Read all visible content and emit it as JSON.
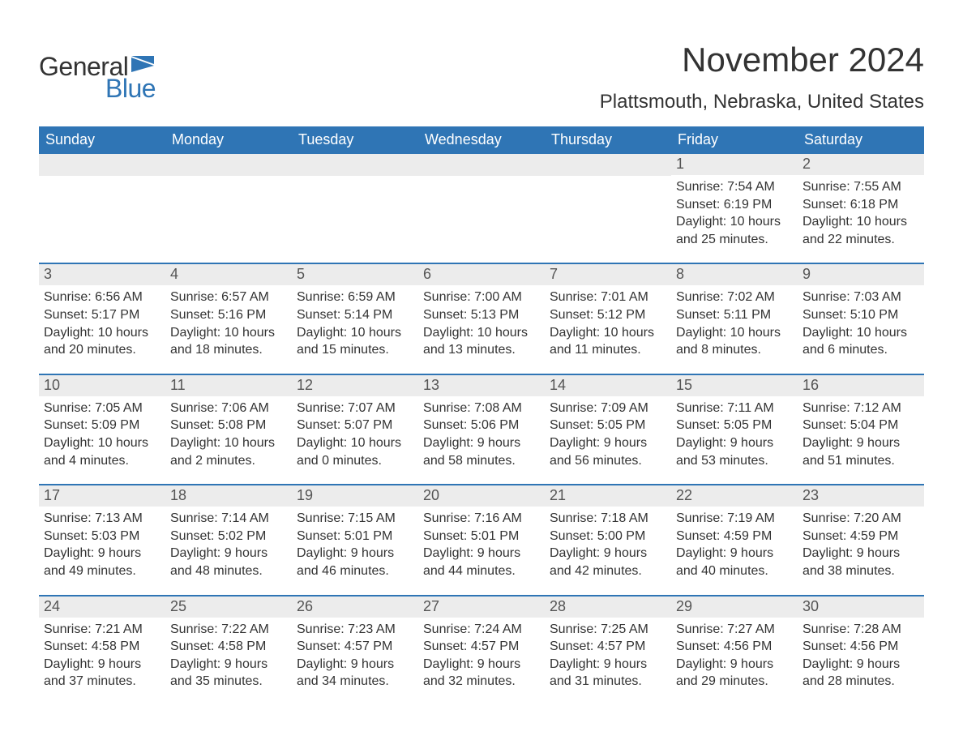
{
  "logo": {
    "text1": "General",
    "text2": "Blue",
    "flag_color": "#2f75b5"
  },
  "title": "November 2024",
  "location": "Plattsmouth, Nebraska, United States",
  "colors": {
    "header_bg": "#2f75b5",
    "header_text": "#ffffff",
    "daynum_bg": "#ececec",
    "body_text": "#333333",
    "page_bg": "#ffffff"
  },
  "typography": {
    "title_fontsize": 42,
    "location_fontsize": 24,
    "header_fontsize": 18,
    "daynum_fontsize": 18,
    "body_fontsize": 16,
    "logo_fontsize": 32
  },
  "day_headers": [
    "Sunday",
    "Monday",
    "Tuesday",
    "Wednesday",
    "Thursday",
    "Friday",
    "Saturday"
  ],
  "weeks": [
    [
      {
        "empty": true
      },
      {
        "empty": true
      },
      {
        "empty": true
      },
      {
        "empty": true
      },
      {
        "empty": true
      },
      {
        "n": "1",
        "sunrise": "7:54 AM",
        "sunset": "6:19 PM",
        "daylight": "10 hours and 25 minutes."
      },
      {
        "n": "2",
        "sunrise": "7:55 AM",
        "sunset": "6:18 PM",
        "daylight": "10 hours and 22 minutes."
      }
    ],
    [
      {
        "n": "3",
        "sunrise": "6:56 AM",
        "sunset": "5:17 PM",
        "daylight": "10 hours and 20 minutes."
      },
      {
        "n": "4",
        "sunrise": "6:57 AM",
        "sunset": "5:16 PM",
        "daylight": "10 hours and 18 minutes."
      },
      {
        "n": "5",
        "sunrise": "6:59 AM",
        "sunset": "5:14 PM",
        "daylight": "10 hours and 15 minutes."
      },
      {
        "n": "6",
        "sunrise": "7:00 AM",
        "sunset": "5:13 PM",
        "daylight": "10 hours and 13 minutes."
      },
      {
        "n": "7",
        "sunrise": "7:01 AM",
        "sunset": "5:12 PM",
        "daylight": "10 hours and 11 minutes."
      },
      {
        "n": "8",
        "sunrise": "7:02 AM",
        "sunset": "5:11 PM",
        "daylight": "10 hours and 8 minutes."
      },
      {
        "n": "9",
        "sunrise": "7:03 AM",
        "sunset": "5:10 PM",
        "daylight": "10 hours and 6 minutes."
      }
    ],
    [
      {
        "n": "10",
        "sunrise": "7:05 AM",
        "sunset": "5:09 PM",
        "daylight": "10 hours and 4 minutes."
      },
      {
        "n": "11",
        "sunrise": "7:06 AM",
        "sunset": "5:08 PM",
        "daylight": "10 hours and 2 minutes."
      },
      {
        "n": "12",
        "sunrise": "7:07 AM",
        "sunset": "5:07 PM",
        "daylight": "10 hours and 0 minutes."
      },
      {
        "n": "13",
        "sunrise": "7:08 AM",
        "sunset": "5:06 PM",
        "daylight": "9 hours and 58 minutes."
      },
      {
        "n": "14",
        "sunrise": "7:09 AM",
        "sunset": "5:05 PM",
        "daylight": "9 hours and 56 minutes."
      },
      {
        "n": "15",
        "sunrise": "7:11 AM",
        "sunset": "5:05 PM",
        "daylight": "9 hours and 53 minutes."
      },
      {
        "n": "16",
        "sunrise": "7:12 AM",
        "sunset": "5:04 PM",
        "daylight": "9 hours and 51 minutes."
      }
    ],
    [
      {
        "n": "17",
        "sunrise": "7:13 AM",
        "sunset": "5:03 PM",
        "daylight": "9 hours and 49 minutes."
      },
      {
        "n": "18",
        "sunrise": "7:14 AM",
        "sunset": "5:02 PM",
        "daylight": "9 hours and 48 minutes."
      },
      {
        "n": "19",
        "sunrise": "7:15 AM",
        "sunset": "5:01 PM",
        "daylight": "9 hours and 46 minutes."
      },
      {
        "n": "20",
        "sunrise": "7:16 AM",
        "sunset": "5:01 PM",
        "daylight": "9 hours and 44 minutes."
      },
      {
        "n": "21",
        "sunrise": "7:18 AM",
        "sunset": "5:00 PM",
        "daylight": "9 hours and 42 minutes."
      },
      {
        "n": "22",
        "sunrise": "7:19 AM",
        "sunset": "4:59 PM",
        "daylight": "9 hours and 40 minutes."
      },
      {
        "n": "23",
        "sunrise": "7:20 AM",
        "sunset": "4:59 PM",
        "daylight": "9 hours and 38 minutes."
      }
    ],
    [
      {
        "n": "24",
        "sunrise": "7:21 AM",
        "sunset": "4:58 PM",
        "daylight": "9 hours and 37 minutes."
      },
      {
        "n": "25",
        "sunrise": "7:22 AM",
        "sunset": "4:58 PM",
        "daylight": "9 hours and 35 minutes."
      },
      {
        "n": "26",
        "sunrise": "7:23 AM",
        "sunset": "4:57 PM",
        "daylight": "9 hours and 34 minutes."
      },
      {
        "n": "27",
        "sunrise": "7:24 AM",
        "sunset": "4:57 PM",
        "daylight": "9 hours and 32 minutes."
      },
      {
        "n": "28",
        "sunrise": "7:25 AM",
        "sunset": "4:57 PM",
        "daylight": "9 hours and 31 minutes."
      },
      {
        "n": "29",
        "sunrise": "7:27 AM",
        "sunset": "4:56 PM",
        "daylight": "9 hours and 29 minutes."
      },
      {
        "n": "30",
        "sunrise": "7:28 AM",
        "sunset": "4:56 PM",
        "daylight": "9 hours and 28 minutes."
      }
    ]
  ],
  "labels": {
    "sunrise": "Sunrise: ",
    "sunset": "Sunset: ",
    "daylight": "Daylight: "
  }
}
